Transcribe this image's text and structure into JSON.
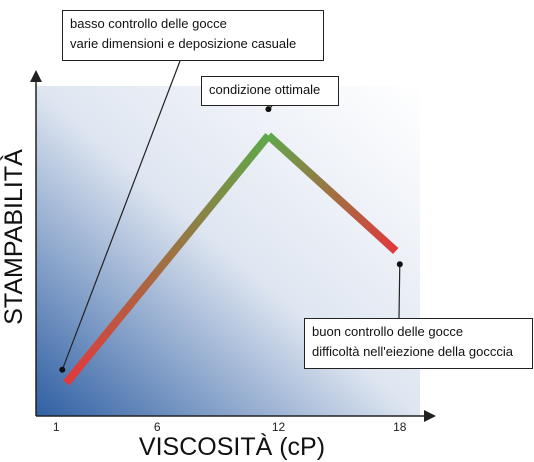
{
  "chart_data": {
    "type": "line",
    "x": [
      1.5,
      11.5,
      17.8
    ],
    "y": [
      10,
      85,
      50
    ],
    "xlim": [
      0,
      19
    ],
    "ylim": [
      0,
      100
    ],
    "xticks": [
      {
        "value": 1,
        "label": "1"
      },
      {
        "value": 6,
        "label": "6"
      },
      {
        "value": 12,
        "label": "12"
      },
      {
        "value": 18,
        "label": "18"
      }
    ],
    "xlabel": "VISCOSITÀ (cP)",
    "ylabel": "STAMPABILITÀ",
    "grid": false,
    "line_color_start": "#e0393c",
    "line_color_mid": "#5fa84a",
    "line_color_end": "#e0393c",
    "background_gradient": [
      "#2f5fa3",
      "#ffffff"
    ],
    "annotations": [
      {
        "id": "low",
        "lines": [
          "basso controllo delle gocce",
          "varie dimensioni e deposizione casuale"
        ],
        "point": [
          1.3,
          14
        ]
      },
      {
        "id": "optimal",
        "lines": [
          "condizione ottimale"
        ],
        "point": [
          11.5,
          93
        ]
      },
      {
        "id": "high",
        "lines": [
          "buon controllo delle gocce",
          "difficoltà nell'eiezione della gocccia"
        ],
        "point": [
          18.0,
          46
        ]
      }
    ]
  }
}
